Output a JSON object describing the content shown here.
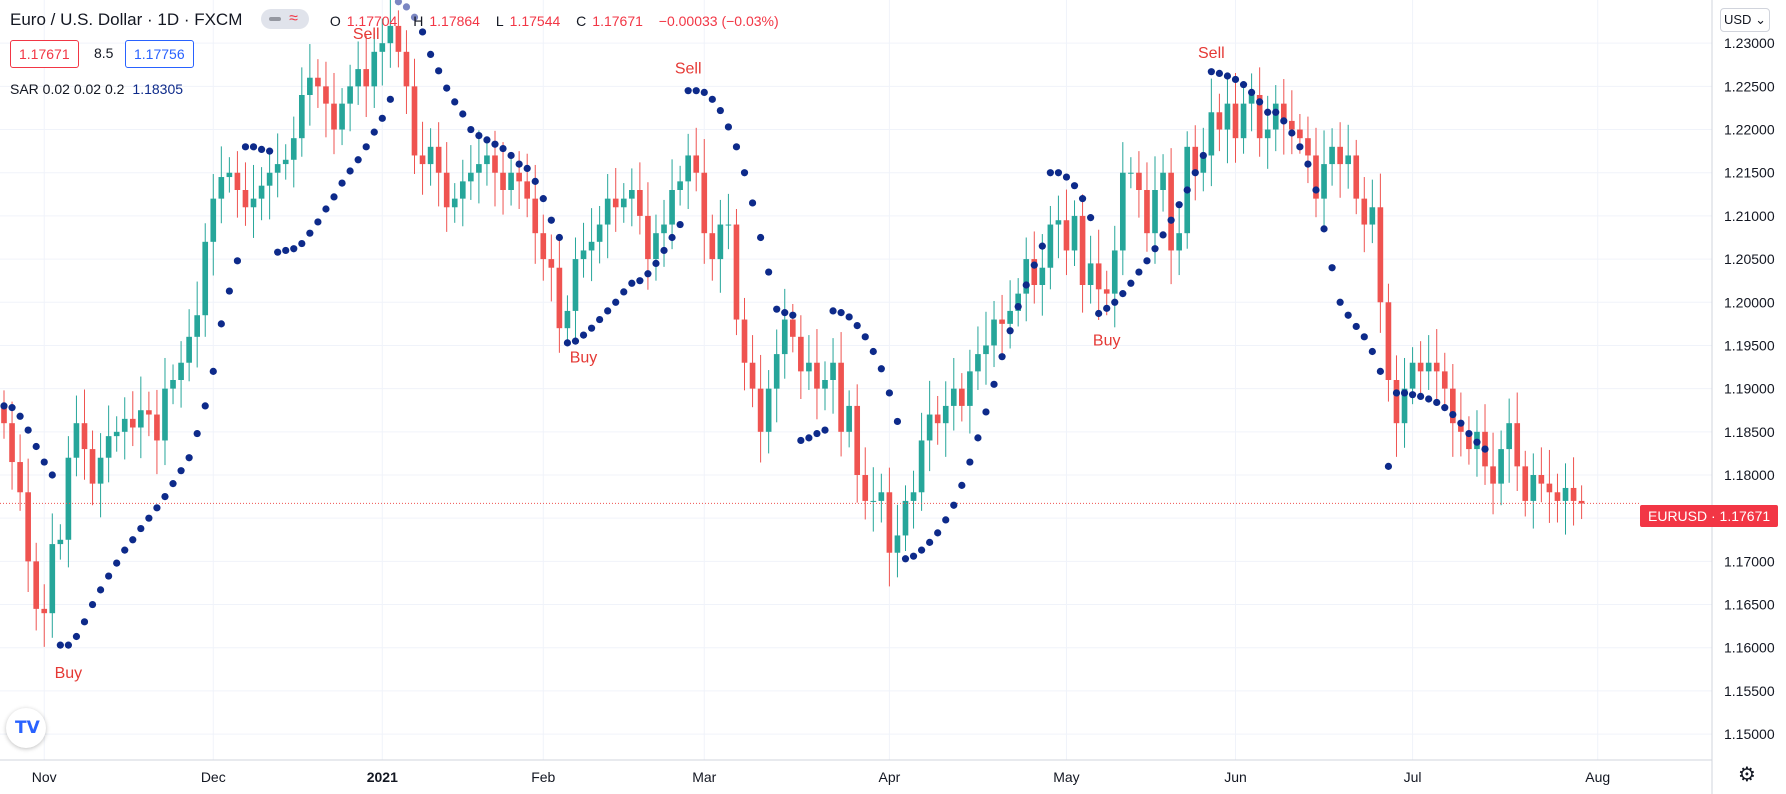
{
  "header": {
    "symbol": "Euro / U.S. Dollar · 1D · FXCM",
    "open_label": "O",
    "open": "1.17704",
    "high_label": "H",
    "high": "1.17864",
    "low_label": "L",
    "low": "1.17544",
    "close_label": "C",
    "close": "1.17671",
    "change": "−0.00033 (−0.03%)"
  },
  "quote": {
    "bid": "1.17671",
    "spread": "8.5",
    "ask": "1.17756"
  },
  "indicator": {
    "label": "SAR 0.02 0.02 0.2",
    "value": "1.18305"
  },
  "currency_button": "USD",
  "last_price_tag": "EURUSD · 1.17671",
  "colors": {
    "up": "#26a69a",
    "down": "#ef5350",
    "sar": "#0d2a8a",
    "signal_text": "#e53935",
    "grid": "#f0f3fa"
  },
  "icons": {
    "logo": "tradingview-logo-icon",
    "settings": "gear-icon",
    "chevron": "chevron-down-icon"
  },
  "chart_data": {
    "type": "candlestick",
    "title": "Euro / U.S. Dollar · 1D · FXCM",
    "ylim": [
      1.147,
      1.235
    ],
    "y_ticks": [
      "1.23000",
      "1.22500",
      "1.22000",
      "1.21500",
      "1.21000",
      "1.20500",
      "1.20000",
      "1.19500",
      "1.19000",
      "1.18500",
      "1.18000",
      "1.17500",
      "1.17000",
      "1.16500",
      "1.16000",
      "1.15500",
      "1.15000"
    ],
    "x_ticks": [
      {
        "label": "Nov",
        "index": 5
      },
      {
        "label": "Dec",
        "index": 26
      },
      {
        "label": "2021",
        "index": 47
      },
      {
        "label": "Feb",
        "index": 67
      },
      {
        "label": "Mar",
        "index": 87
      },
      {
        "label": "Apr",
        "index": 110
      },
      {
        "label": "May",
        "index": 132
      },
      {
        "label": "Jun",
        "index": 153
      },
      {
        "label": "Jul",
        "index": 175
      },
      {
        "label": "Aug",
        "index": 198
      }
    ],
    "closes": [
      1.186,
      1.1815,
      1.178,
      1.17,
      1.1645,
      1.164,
      1.172,
      1.1725,
      1.182,
      1.186,
      1.183,
      1.179,
      1.182,
      1.1845,
      1.185,
      1.1865,
      1.1855,
      1.1875,
      1.187,
      1.184,
      1.19,
      1.191,
      1.193,
      1.196,
      1.1985,
      1.207,
      1.212,
      1.2145,
      1.215,
      1.213,
      1.211,
      1.212,
      1.2135,
      1.215,
      1.216,
      1.2165,
      1.219,
      1.224,
      1.226,
      1.225,
      1.223,
      1.22,
      1.223,
      1.225,
      1.227,
      1.225,
      1.229,
      1.23,
      1.232,
      1.229,
      1.225,
      1.217,
      1.216,
      1.218,
      1.215,
      1.211,
      1.212,
      1.214,
      1.215,
      1.216,
      1.217,
      1.215,
      1.213,
      1.215,
      1.214,
      1.212,
      1.208,
      1.205,
      1.204,
      1.197,
      1.199,
      1.205,
      1.206,
      1.207,
      1.209,
      1.212,
      1.211,
      1.212,
      1.213,
      1.21,
      1.205,
      1.208,
      1.209,
      1.213,
      1.214,
      1.217,
      1.215,
      1.208,
      1.205,
      1.209,
      1.209,
      1.198,
      1.193,
      1.19,
      1.185,
      1.19,
      1.194,
      1.198,
      1.196,
      1.192,
      1.193,
      1.19,
      1.191,
      1.193,
      1.185,
      1.188,
      1.18,
      1.177,
      1.177,
      1.178,
      1.171,
      1.173,
      1.177,
      1.178,
      1.184,
      1.187,
      1.186,
      1.188,
      1.19,
      1.188,
      1.192,
      1.194,
      1.195,
      1.198,
      1.1975,
      1.199,
      1.201,
      1.205,
      1.202,
      1.204,
      1.209,
      1.2095,
      1.206,
      1.21,
      1.202,
      1.2045,
      1.2015,
      1.201,
      1.206,
      1.215,
      1.215,
      1.213,
      1.208,
      1.213,
      1.215,
      1.206,
      1.208,
      1.218,
      1.215,
      1.217,
      1.222,
      1.22,
      1.223,
      1.219,
      1.223,
      1.224,
      1.219,
      1.22,
      1.223,
      1.221,
      1.22,
      1.219,
      1.217,
      1.212,
      1.216,
      1.218,
      1.216,
      1.217,
      1.212,
      1.209,
      1.211,
      1.2,
      1.191,
      1.186,
      1.19,
      1.193,
      1.192,
      1.193,
      1.192,
      1.19,
      1.186,
      1.185,
      1.183,
      1.185,
      1.181,
      1.179,
      1.183,
      1.186,
      1.181,
      1.177,
      1.18,
      1.179,
      1.178,
      1.177,
      1.1785,
      1.177,
      1.1767
    ],
    "sar": [
      {
        "index": 0,
        "value": 1.188
      },
      {
        "index": 1,
        "value": 1.1878
      },
      {
        "index": 2,
        "value": 1.1868
      },
      {
        "index": 3,
        "value": 1.1852
      },
      {
        "index": 4,
        "value": 1.1833
      },
      {
        "index": 5,
        "value": 1.1815
      },
      {
        "index": 6,
        "value": 1.18
      },
      {
        "index": 7,
        "value": 1.1603
      },
      {
        "index": 8,
        "value": 1.1603
      },
      {
        "index": 9,
        "value": 1.1613
      },
      {
        "index": 10,
        "value": 1.163
      },
      {
        "index": 11,
        "value": 1.165
      },
      {
        "index": 12,
        "value": 1.1667
      },
      {
        "index": 13,
        "value": 1.1683
      },
      {
        "index": 14,
        "value": 1.1698
      },
      {
        "index": 15,
        "value": 1.1713
      },
      {
        "index": 16,
        "value": 1.1725
      },
      {
        "index": 17,
        "value": 1.1738
      },
      {
        "index": 18,
        "value": 1.175
      },
      {
        "index": 19,
        "value": 1.1762
      },
      {
        "index": 20,
        "value": 1.1775
      },
      {
        "index": 21,
        "value": 1.179
      },
      {
        "index": 22,
        "value": 1.1805
      },
      {
        "index": 23,
        "value": 1.182
      },
      {
        "index": 24,
        "value": 1.1848
      },
      {
        "index": 25,
        "value": 1.188
      },
      {
        "index": 26,
        "value": 1.192
      },
      {
        "index": 27,
        "value": 1.1975
      },
      {
        "index": 28,
        "value": 1.2013
      },
      {
        "index": 29,
        "value": 1.2048
      },
      {
        "index": 30,
        "value": 1.218
      },
      {
        "index": 31,
        "value": 1.218
      },
      {
        "index": 32,
        "value": 1.2177
      },
      {
        "index": 33,
        "value": 1.2175
      },
      {
        "index": 34,
        "value": 1.2058
      },
      {
        "index": 35,
        "value": 1.206
      },
      {
        "index": 36,
        "value": 1.2062
      },
      {
        "index": 37,
        "value": 1.2068
      },
      {
        "index": 38,
        "value": 1.208
      },
      {
        "index": 39,
        "value": 1.2093
      },
      {
        "index": 40,
        "value": 1.2108
      },
      {
        "index": 41,
        "value": 1.2122
      },
      {
        "index": 42,
        "value": 1.2138
      },
      {
        "index": 43,
        "value": 1.2152
      },
      {
        "index": 44,
        "value": 1.2165
      },
      {
        "index": 45,
        "value": 1.218
      },
      {
        "index": 46,
        "value": 1.2197
      },
      {
        "index": 47,
        "value": 1.2213
      },
      {
        "index": 48,
        "value": 1.2235
      },
      {
        "index": 49,
        "value": 1.2348
      },
      {
        "index": 50,
        "value": 1.2342
      },
      {
        "index": 51,
        "value": 1.233
      },
      {
        "index": 52,
        "value": 1.2313
      },
      {
        "index": 53,
        "value": 1.2287
      },
      {
        "index": 54,
        "value": 1.2268
      },
      {
        "index": 55,
        "value": 1.2248
      },
      {
        "index": 56,
        "value": 1.2232
      },
      {
        "index": 57,
        "value": 1.2218
      },
      {
        "index": 58,
        "value": 1.22
      },
      {
        "index": 59,
        "value": 1.2193
      },
      {
        "index": 60,
        "value": 1.2188
      },
      {
        "index": 61,
        "value": 1.2183
      },
      {
        "index": 62,
        "value": 1.2178
      },
      {
        "index": 63,
        "value": 1.217
      },
      {
        "index": 64,
        "value": 1.216
      },
      {
        "index": 65,
        "value": 1.2155
      },
      {
        "index": 66,
        "value": 1.214
      },
      {
        "index": 67,
        "value": 1.212
      },
      {
        "index": 68,
        "value": 1.2095
      },
      {
        "index": 69,
        "value": 1.2075
      },
      {
        "index": 70,
        "value": 1.1953
      },
      {
        "index": 71,
        "value": 1.1955
      },
      {
        "index": 72,
        "value": 1.1962
      },
      {
        "index": 73,
        "value": 1.197
      },
      {
        "index": 74,
        "value": 1.198
      },
      {
        "index": 75,
        "value": 1.199
      },
      {
        "index": 76,
        "value": 1.2
      },
      {
        "index": 77,
        "value": 1.2012
      },
      {
        "index": 78,
        "value": 1.2022
      },
      {
        "index": 79,
        "value": 1.2025
      },
      {
        "index": 80,
        "value": 1.2033
      },
      {
        "index": 81,
        "value": 1.2045
      },
      {
        "index": 82,
        "value": 1.206
      },
      {
        "index": 83,
        "value": 1.2075
      },
      {
        "index": 84,
        "value": 1.209
      },
      {
        "index": 85,
        "value": 1.2245
      },
      {
        "index": 86,
        "value": 1.2245
      },
      {
        "index": 87,
        "value": 1.2243
      },
      {
        "index": 88,
        "value": 1.2235
      },
      {
        "index": 89,
        "value": 1.2222
      },
      {
        "index": 90,
        "value": 1.2203
      },
      {
        "index": 91,
        "value": 1.218
      },
      {
        "index": 92,
        "value": 1.215
      },
      {
        "index": 93,
        "value": 1.2115
      },
      {
        "index": 94,
        "value": 1.2075
      },
      {
        "index": 95,
        "value": 1.2035
      },
      {
        "index": 96,
        "value": 1.1992
      },
      {
        "index": 97,
        "value": 1.1988
      },
      {
        "index": 98,
        "value": 1.1985
      },
      {
        "index": 99,
        "value": 1.184
      },
      {
        "index": 100,
        "value": 1.1843
      },
      {
        "index": 101,
        "value": 1.1848
      },
      {
        "index": 102,
        "value": 1.1852
      },
      {
        "index": 103,
        "value": 1.199
      },
      {
        "index": 104,
        "value": 1.1988
      },
      {
        "index": 105,
        "value": 1.1983
      },
      {
        "index": 106,
        "value": 1.1973
      },
      {
        "index": 107,
        "value": 1.196
      },
      {
        "index": 108,
        "value": 1.1943
      },
      {
        "index": 109,
        "value": 1.1923
      },
      {
        "index": 110,
        "value": 1.1895
      },
      {
        "index": 111,
        "value": 1.1862
      },
      {
        "index": 112,
        "value": 1.1703
      },
      {
        "index": 113,
        "value": 1.1706
      },
      {
        "index": 114,
        "value": 1.1713
      },
      {
        "index": 115,
        "value": 1.1722
      },
      {
        "index": 116,
        "value": 1.1733
      },
      {
        "index": 117,
        "value": 1.1748
      },
      {
        "index": 118,
        "value": 1.1765
      },
      {
        "index": 119,
        "value": 1.1788
      },
      {
        "index": 120,
        "value": 1.1815
      },
      {
        "index": 121,
        "value": 1.1843
      },
      {
        "index": 122,
        "value": 1.1873
      },
      {
        "index": 123,
        "value": 1.1905
      },
      {
        "index": 124,
        "value": 1.1937
      },
      {
        "index": 125,
        "value": 1.1967
      },
      {
        "index": 126,
        "value": 1.1995
      },
      {
        "index": 127,
        "value": 1.202
      },
      {
        "index": 128,
        "value": 1.2043
      },
      {
        "index": 129,
        "value": 1.2065
      },
      {
        "index": 130,
        "value": 1.215
      },
      {
        "index": 131,
        "value": 1.215
      },
      {
        "index": 132,
        "value": 1.2145
      },
      {
        "index": 133,
        "value": 1.2135
      },
      {
        "index": 134,
        "value": 1.212
      },
      {
        "index": 135,
        "value": 1.2098
      },
      {
        "index": 136,
        "value": 1.1987
      },
      {
        "index": 137,
        "value": 1.1993
      },
      {
        "index": 138,
        "value": 1.2
      },
      {
        "index": 139,
        "value": 1.201
      },
      {
        "index": 140,
        "value": 1.2022
      },
      {
        "index": 141,
        "value": 1.2035
      },
      {
        "index": 142,
        "value": 1.2048
      },
      {
        "index": 143,
        "value": 1.2062
      },
      {
        "index": 144,
        "value": 1.2078
      },
      {
        "index": 145,
        "value": 1.2095
      },
      {
        "index": 146,
        "value": 1.2113
      },
      {
        "index": 147,
        "value": 1.213
      },
      {
        "index": 148,
        "value": 1.215
      },
      {
        "index": 149,
        "value": 1.217
      },
      {
        "index": 150,
        "value": 1.2267
      },
      {
        "index": 151,
        "value": 1.2265
      },
      {
        "index": 152,
        "value": 1.2262
      },
      {
        "index": 153,
        "value": 1.2258
      },
      {
        "index": 154,
        "value": 1.2252
      },
      {
        "index": 155,
        "value": 1.2243
      },
      {
        "index": 156,
        "value": 1.2232
      },
      {
        "index": 157,
        "value": 1.222
      },
      {
        "index": 158,
        "value": 1.222
      },
      {
        "index": 159,
        "value": 1.221
      },
      {
        "index": 160,
        "value": 1.2196
      },
      {
        "index": 161,
        "value": 1.218
      },
      {
        "index": 162,
        "value": 1.216
      },
      {
        "index": 163,
        "value": 1.213
      },
      {
        "index": 164,
        "value": 1.2085
      },
      {
        "index": 165,
        "value": 1.204
      },
      {
        "index": 166,
        "value": 1.2
      },
      {
        "index": 167,
        "value": 1.1985
      },
      {
        "index": 168,
        "value": 1.1972
      },
      {
        "index": 169,
        "value": 1.196
      },
      {
        "index": 170,
        "value": 1.1943
      },
      {
        "index": 171,
        "value": 1.192
      },
      {
        "index": 172,
        "value": 1.181
      },
      {
        "index": 173,
        "value": 1.1895
      },
      {
        "index": 174,
        "value": 1.1895
      },
      {
        "index": 175,
        "value": 1.1893
      },
      {
        "index": 176,
        "value": 1.1891
      },
      {
        "index": 177,
        "value": 1.1888
      },
      {
        "index": 178,
        "value": 1.1884
      },
      {
        "index": 179,
        "value": 1.1878
      },
      {
        "index": 180,
        "value": 1.187
      },
      {
        "index": 181,
        "value": 1.186
      },
      {
        "index": 182,
        "value": 1.1848
      },
      {
        "index": 183,
        "value": 1.1838
      },
      {
        "index": 184,
        "value": 1.183
      }
    ],
    "signals": [
      {
        "text": "Buy",
        "index": 8,
        "value": 1.1565
      },
      {
        "text": "Sell",
        "index": 45,
        "value": 1.2305
      },
      {
        "text": "Buy",
        "index": 72,
        "value": 1.193
      },
      {
        "text": "Sell",
        "index": 85,
        "value": 1.2265
      },
      {
        "text": "Buy",
        "index": 137,
        "value": 1.195
      },
      {
        "text": "Sell",
        "index": 150,
        "value": 1.2283
      }
    ],
    "last_price": 1.17671
  }
}
